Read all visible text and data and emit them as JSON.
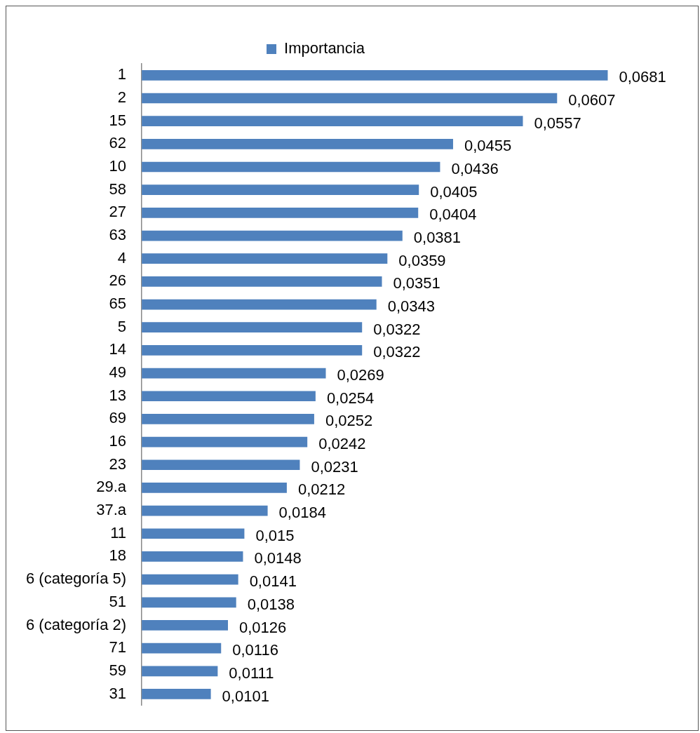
{
  "chart_data": {
    "type": "bar",
    "orientation": "horizontal",
    "categories": [
      "1",
      "2",
      "15",
      "62",
      "10",
      "58",
      "27",
      "63",
      "4",
      "26",
      "65",
      "5",
      "14",
      "49",
      "13",
      "69",
      "16",
      "23",
      "29.a",
      "37.a",
      "11",
      "18",
      "6 (categoría 5)",
      "51",
      "6 (categoría 2)",
      "71",
      "59",
      "31"
    ],
    "series": [
      {
        "name": "Importancia",
        "color": "#4f81bd",
        "values": [
          0.0681,
          0.0607,
          0.0557,
          0.0455,
          0.0436,
          0.0405,
          0.0404,
          0.0381,
          0.0359,
          0.0351,
          0.0343,
          0.0322,
          0.0322,
          0.0269,
          0.0254,
          0.0252,
          0.0242,
          0.0231,
          0.0212,
          0.0184,
          0.015,
          0.0148,
          0.0141,
          0.0138,
          0.0126,
          0.0116,
          0.0111,
          0.0101
        ],
        "value_labels": [
          "0,0681",
          "0,0607",
          "0,0557",
          "0,0455",
          "0,0436",
          "0,0405",
          "0,0404",
          "0,0381",
          "0,0359",
          "0,0351",
          "0,0343",
          "0,0322",
          "0,0322",
          "0,0269",
          "0,0254",
          "0,0252",
          "0,0242",
          "0,0231",
          "0,0212",
          "0,0184",
          "0,015",
          "0,0148",
          "0,0141",
          "0,0138",
          "0,0126",
          "0,0116",
          "0,0111",
          "0,0101"
        ]
      }
    ],
    "legend": "top",
    "grid": false,
    "tick_labels": "y"
  }
}
